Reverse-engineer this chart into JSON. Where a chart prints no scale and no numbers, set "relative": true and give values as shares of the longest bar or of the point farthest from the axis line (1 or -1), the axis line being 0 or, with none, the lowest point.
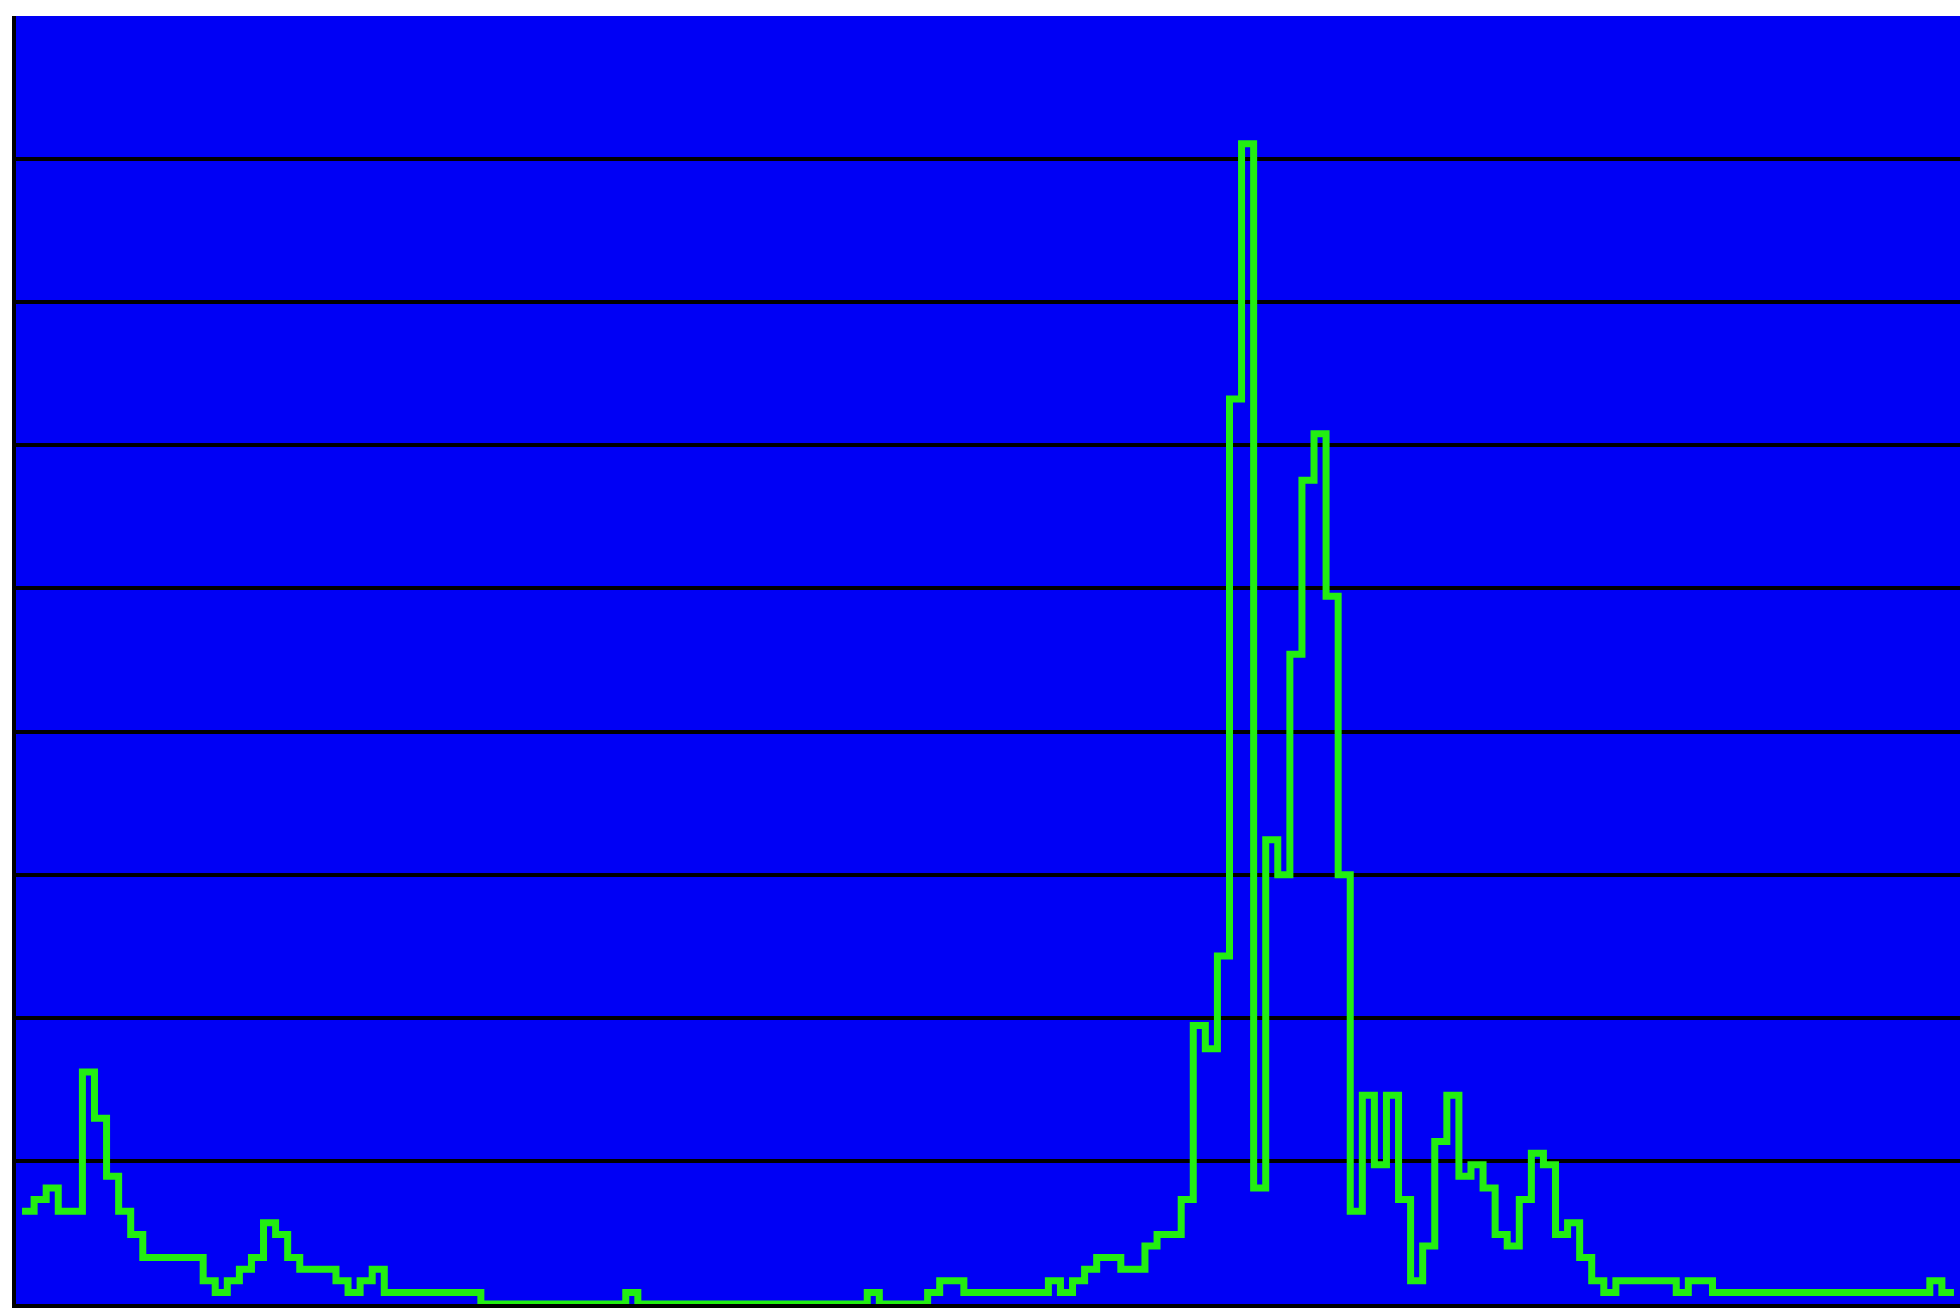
{
  "chart_data": {
    "type": "step",
    "relative": true,
    "grid": "y",
    "legend": false,
    "categories": [
      null,
      null,
      null,
      null,
      null,
      null,
      null,
      null,
      null,
      null,
      null,
      null,
      null,
      null,
      null,
      null,
      null,
      null,
      null,
      null,
      null,
      null,
      null,
      null,
      null,
      null,
      null,
      null,
      null,
      null,
      null,
      null,
      null,
      null,
      null,
      null,
      null,
      null,
      null,
      null,
      null,
      null,
      null,
      null,
      null,
      null,
      null,
      null,
      null,
      null,
      null,
      null,
      null,
      null,
      null,
      null,
      null,
      null,
      null,
      null,
      null,
      null,
      null,
      null,
      null,
      null,
      null,
      null,
      null,
      null,
      null,
      null,
      null,
      null,
      null,
      null,
      null,
      null,
      null,
      null,
      null,
      null,
      null,
      null,
      null,
      null,
      null,
      null,
      null,
      null,
      null,
      null,
      null,
      null,
      null,
      null,
      null,
      null,
      null,
      null,
      null,
      null,
      null,
      null,
      null,
      null,
      null,
      null,
      null,
      null,
      null,
      null,
      null,
      null,
      null,
      null,
      null,
      null,
      null,
      null,
      null,
      null,
      null,
      null,
      null,
      null,
      null,
      null,
      null,
      null,
      null,
      null,
      null,
      null,
      null,
      null,
      null,
      null,
      null,
      null,
      null,
      null,
      null,
      null,
      null,
      null,
      null,
      null,
      null,
      null,
      null,
      null,
      null,
      null,
      null,
      null,
      null,
      null,
      null,
      null,
      null
    ],
    "series": [
      {
        "color": "#22ee11",
        "values": [
          0.08,
          0.09,
          0.1,
          0.08,
          0.08,
          0.2,
          0.16,
          0.11,
          0.08,
          0.06,
          0.04,
          0.04,
          0.04,
          0.04,
          0.04,
          0.02,
          0.01,
          0.02,
          0.03,
          0.04,
          0.07,
          0.06,
          0.04,
          0.03,
          0.03,
          0.03,
          0.02,
          0.01,
          0.02,
          0.03,
          0.01,
          0.01,
          0.01,
          0.01,
          0.01,
          0.01,
          0.01,
          0.01,
          0,
          0,
          0,
          0,
          0,
          0,
          0,
          0,
          0,
          0,
          0,
          0,
          0.01,
          0,
          0,
          0,
          0,
          0,
          0,
          0,
          0,
          0,
          0,
          0,
          0,
          0,
          0,
          0,
          0,
          0,
          0,
          0,
          0.01,
          0,
          0,
          0,
          0,
          0.01,
          0.02,
          0.02,
          0.01,
          0.01,
          0.01,
          0.01,
          0.01,
          0.01,
          0.01,
          0.02,
          0.01,
          0.02,
          0.03,
          0.04,
          0.04,
          0.03,
          0.03,
          0.05,
          0.06,
          0.06,
          0.09,
          0.24,
          0.22,
          0.3,
          0.78,
          1.0,
          0.1,
          0.4,
          0.37,
          0.56,
          0.71,
          0.75,
          0.61,
          0.37,
          0.08,
          0.18,
          0.12,
          0.18,
          0.09,
          0.02,
          0.05,
          0.14,
          0.18,
          0.11,
          0.12,
          0.1,
          0.06,
          0.05,
          0.09,
          0.13,
          0.12,
          0.06,
          0.07,
          0.04,
          0.02,
          0.01,
          0.02,
          0.02,
          0.02,
          0.02,
          0.02,
          0.01,
          0.02,
          0.02,
          0.01,
          0.01,
          0.01,
          0.01,
          0.01,
          0.01,
          0.01,
          0.01,
          0.01,
          0.01,
          0.01,
          0.01,
          0.01,
          0.01,
          0.01,
          0.01,
          0.01,
          0.01,
          0.02,
          0.01,
          0.01
        ]
      }
    ]
  }
}
